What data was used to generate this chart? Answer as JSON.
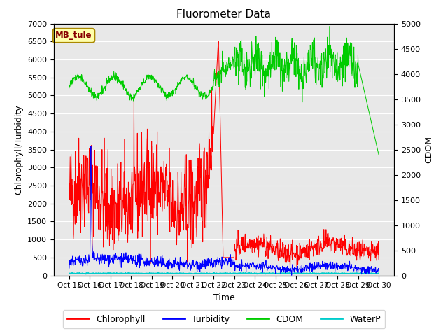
{
  "title": "Fluorometer Data",
  "xlabel": "Time",
  "ylabel_left": "Chlorophyll/Turbidity",
  "ylabel_right": "CDOM",
  "ylim_left": [
    0,
    7000
  ],
  "ylim_right": [
    0,
    5000
  ],
  "yticks_left": [
    0,
    500,
    1000,
    1500,
    2000,
    2500,
    3000,
    3500,
    4000,
    4500,
    5000,
    5500,
    6000,
    6500,
    7000
  ],
  "yticks_right": [
    0,
    500,
    1000,
    1500,
    2000,
    2500,
    3000,
    3500,
    4000,
    4500,
    5000
  ],
  "xtick_labels": [
    "Oct 15",
    "Oct 16",
    "Oct 17",
    "Oct 18",
    "Oct 19",
    "Oct 20",
    "Oct 21",
    "Oct 22",
    "Oct 23",
    "Oct 24",
    "Oct 25",
    "Oct 26",
    "Oct 27",
    "Oct 28",
    "Oct 29",
    "Oct 30"
  ],
  "annotation_text": "MB_tule",
  "annotation_color": "#880000",
  "annotation_bg": "#ffffaa",
  "annotation_border": "#aa8800",
  "colors": {
    "chlorophyll": "#ff0000",
    "turbidity": "#0000ff",
    "cdom": "#00cc00",
    "waterp": "#00cccc"
  },
  "legend_labels": [
    "Chlorophyll",
    "Turbidity",
    "CDOM",
    "WaterP"
  ],
  "background_color": "#e8e8e8",
  "grid_color": "#ffffff"
}
